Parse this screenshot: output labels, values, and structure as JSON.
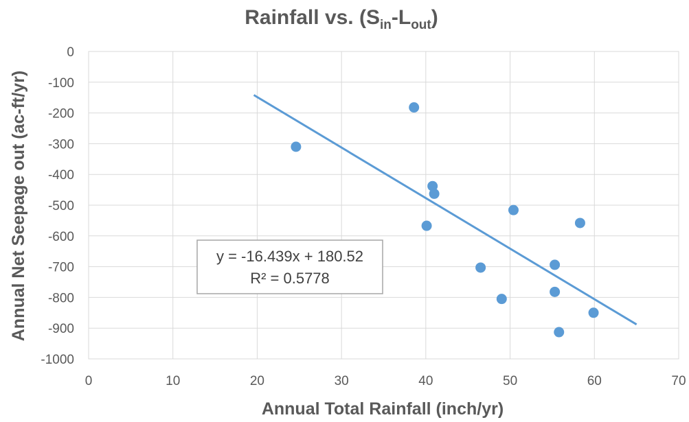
{
  "chart_data": {
    "type": "scatter",
    "title": {
      "main": "Rainfall vs. (S",
      "sub1": "in",
      "dash": "-L",
      "sub2": "out",
      "close": ")"
    },
    "xlabel": "Annual Total Rainfall (inch/yr)",
    "ylabel": "Annual Net Seepage out (ac-ft/yr)",
    "xlim": [
      0,
      70
    ],
    "ylim": [
      -1000,
      0
    ],
    "x_ticks": [
      0,
      10,
      20,
      30,
      40,
      50,
      60,
      70
    ],
    "y_ticks": [
      0,
      -100,
      -200,
      -300,
      -400,
      -500,
      -600,
      -700,
      -800,
      -900,
      -1000
    ],
    "grid": true,
    "points": [
      {
        "x": 24.6,
        "y": -310
      },
      {
        "x": 38.6,
        "y": -182
      },
      {
        "x": 40.8,
        "y": -438
      },
      {
        "x": 41.0,
        "y": -463
      },
      {
        "x": 40.1,
        "y": -567
      },
      {
        "x": 46.5,
        "y": -703
      },
      {
        "x": 49.0,
        "y": -805
      },
      {
        "x": 50.4,
        "y": -516
      },
      {
        "x": 55.3,
        "y": -694
      },
      {
        "x": 55.3,
        "y": -782
      },
      {
        "x": 55.8,
        "y": -913
      },
      {
        "x": 58.3,
        "y": -558
      },
      {
        "x": 59.9,
        "y": -850
      }
    ],
    "trendline": {
      "slope": -16.439,
      "intercept": 180.52,
      "x_range": [
        19.6,
        65.0
      ],
      "equation_label": "y = -16.439x + 180.52",
      "r2_label": "R² = 0.5778"
    },
    "colors": {
      "marker": "#5b9bd5",
      "trendline": "#5b9bd5",
      "text": "#595959",
      "grid": "#d9d9d9"
    }
  }
}
